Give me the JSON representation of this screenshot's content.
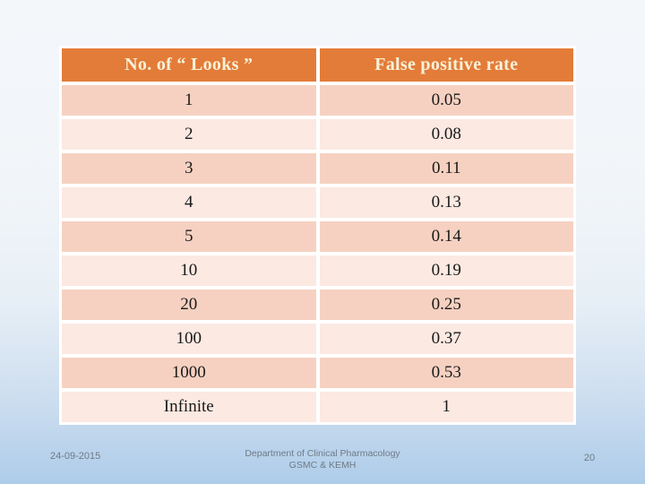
{
  "table": {
    "headers": [
      "No. of  “ Looks ”",
      "False positive rate"
    ],
    "rows": [
      [
        "1",
        "0.05"
      ],
      [
        "2",
        "0.08"
      ],
      [
        "3",
        "0.11"
      ],
      [
        "4",
        "0.13"
      ],
      [
        "5",
        "0.14"
      ],
      [
        "10",
        "0.19"
      ],
      [
        "20",
        "0.25"
      ],
      [
        "100",
        "0.37"
      ],
      [
        "1000",
        "0.53"
      ],
      [
        "Infinite",
        "1"
      ]
    ]
  },
  "footer": {
    "date": "24-09-2015",
    "department_line1": "Department of Clinical Pharmacology",
    "department_line2": "GSMC & KEMH",
    "page_number": "20"
  },
  "colors": {
    "header_bg": "#e37c38",
    "header_text": "#f8f1d9",
    "row_dark": "#f6d1c1",
    "row_light": "#fbe9e2",
    "bg_top": "#f4f7fa",
    "bg_bottom": "#aecce9",
    "footer_text": "#6f7a86"
  }
}
